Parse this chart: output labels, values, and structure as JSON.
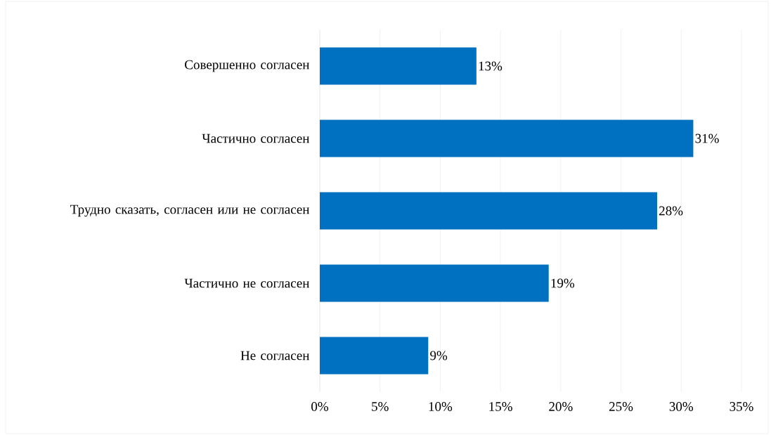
{
  "chart_data": {
    "type": "bar",
    "orientation": "horizontal",
    "categories": [
      "Совершенно согласен",
      "Частично согласен",
      "Трудно сказать, согласен или не согласен",
      "Частично не согласен",
      "Не согласен"
    ],
    "values": [
      13,
      31,
      28,
      19,
      9
    ],
    "value_labels": [
      "13%",
      "31%",
      "28%",
      "19%",
      "9%"
    ],
    "color": "#0070c0",
    "xlim": [
      0,
      35
    ],
    "xticks": [
      {
        "value": 0,
        "label": "0%"
      },
      {
        "value": 5,
        "label": "5%"
      },
      {
        "value": 10,
        "label": "10%"
      },
      {
        "value": 15,
        "label": "15%"
      },
      {
        "value": 20,
        "label": "20%"
      },
      {
        "value": 25,
        "label": "25%"
      },
      {
        "value": 30,
        "label": "30%"
      },
      {
        "value": 35,
        "label": "35%"
      }
    ],
    "grid": "x"
  }
}
